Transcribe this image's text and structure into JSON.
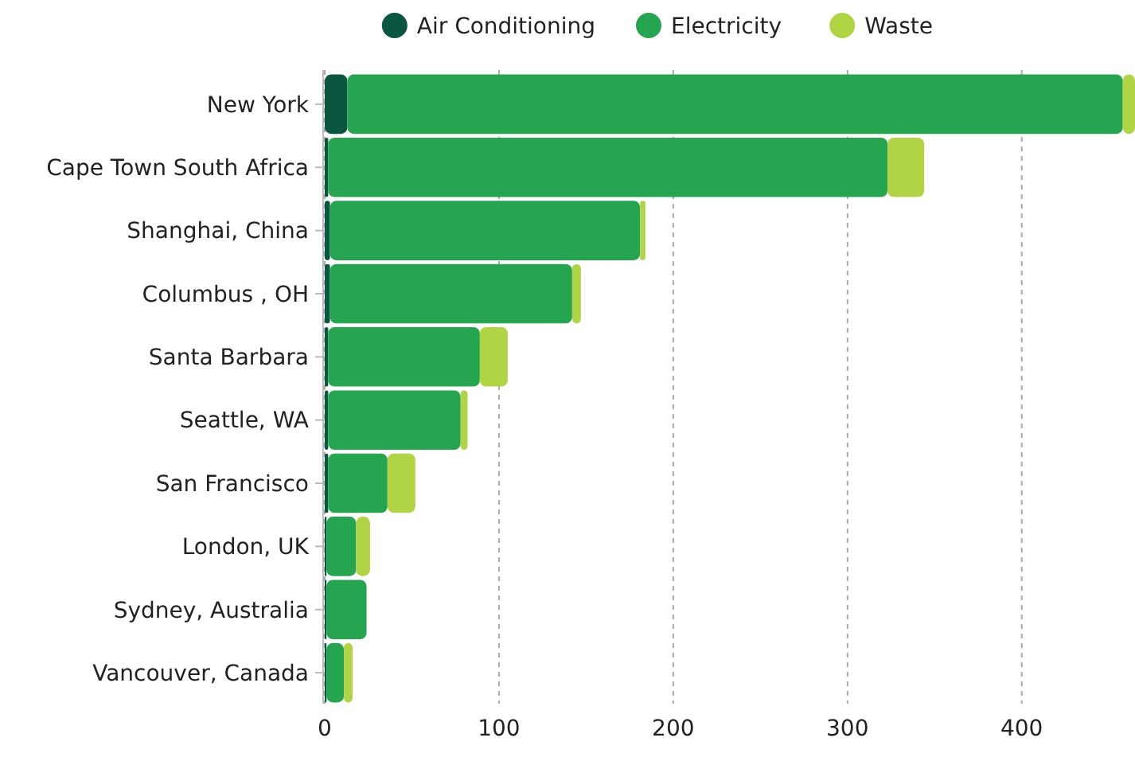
{
  "chart_data": {
    "type": "bar",
    "orientation": "horizontal",
    "stacked": true,
    "categories": [
      "New York",
      "Cape Town South Africa",
      "Shanghai, China",
      "Columbus , OH",
      "Santa Barbara",
      "Seattle, WA",
      "San Francisco",
      "London, UK",
      "Sydney, Australia",
      "Vancouver, Canada"
    ],
    "series": [
      {
        "name": "Air Conditioning",
        "color": "#0b5640",
        "values": [
          13,
          2,
          3,
          3,
          2,
          2,
          2,
          1,
          1,
          1
        ]
      },
      {
        "name": "Electricity",
        "color": "#26a551",
        "values": [
          445,
          321,
          178,
          139,
          87,
          76,
          34,
          17,
          23,
          10
        ]
      },
      {
        "name": "Waste",
        "color": "#b0d444",
        "values": [
          7,
          21,
          3,
          5,
          16,
          4,
          16,
          8,
          null,
          5
        ]
      }
    ],
    "xlim": [
      0,
      465
    ],
    "xticks": [
      0,
      100,
      200,
      300,
      400
    ],
    "grid": "x",
    "legend": "top"
  }
}
